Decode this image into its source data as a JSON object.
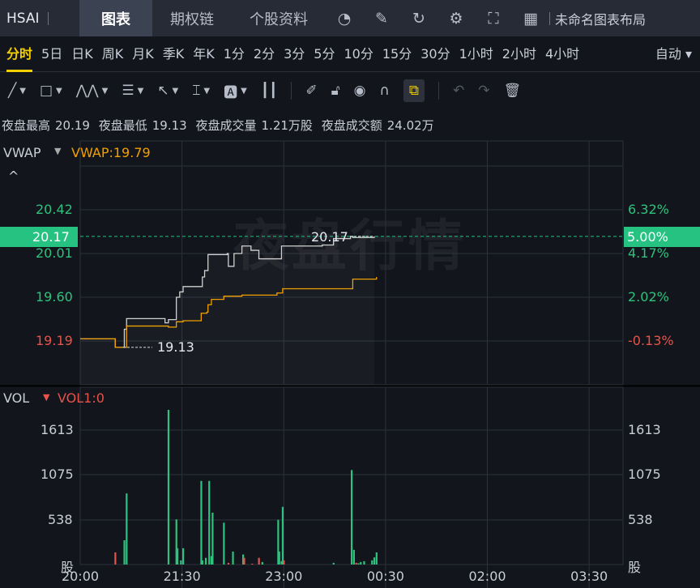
{
  "header": {
    "symbol": "HSAI",
    "tabs": [
      {
        "label": "图表",
        "active": true
      },
      {
        "label": "期权链"
      },
      {
        "label": "个股资料"
      }
    ],
    "icons": [
      "gauge-icon",
      "edit-icon",
      "refresh-icon",
      "gear-icon",
      "fullscreen-icon",
      "grid-icon"
    ],
    "layout_name": "未命名图表布局"
  },
  "periods": {
    "items": [
      "分时",
      "5日",
      "日K",
      "周K",
      "月K",
      "季K",
      "年K",
      "1分",
      "2分",
      "3分",
      "5分",
      "10分",
      "15分",
      "30分",
      "1小时",
      "2小时",
      "4小时"
    ],
    "active": "分时",
    "mode": "自动 ▾"
  },
  "tools": [
    "trendline-icon",
    "rectangle-icon",
    "pattern-icon",
    "fib-icon",
    "arrow-icon",
    "measure-icon",
    "text-icon",
    "candle-icon",
    "pencil-icon",
    "unlock-icon",
    "eye-icon",
    "magnet-icon",
    "link-icon",
    "undo-icon",
    "redo-icon",
    "trash-icon"
  ],
  "info": {
    "high_label": "夜盘最高",
    "high": "20.19",
    "low_label": "夜盘最低",
    "low": "19.13",
    "vol_label": "夜盘成交量",
    "vol": "1.21万股",
    "amt_label": "夜盘成交额",
    "amt": "24.02万"
  },
  "price_pane": {
    "indicator": "VWAP",
    "indicator_value": "VWAP:19.79",
    "watermark": "夜盘行情",
    "left_ticks": [
      "20.42",
      "20.01",
      "19.60",
      "19.19"
    ],
    "right_ticks": [
      "6.32%",
      "4.17%",
      "2.02%",
      "-0.13%"
    ],
    "current_price": "20.17",
    "current_pct": "5.00%",
    "high_mark": "20.17",
    "low_mark": "19.13"
  },
  "volume_pane": {
    "indicator": "VOL",
    "indicator_value": "VOL1:0",
    "ticks": [
      "1613",
      "1075",
      "538"
    ],
    "unit": "股"
  },
  "colors": {
    "up": "#2ec27e",
    "down": "#e5534b",
    "price": "#d0d0d0",
    "vwap": "#f0a000",
    "accent": "#f5d000"
  },
  "chart_data": {
    "type": "line",
    "x_ticks": [
      "20:00",
      "21:30",
      "23:00",
      "00:30",
      "02:00",
      "03:30"
    ],
    "x_range": [
      "20:00",
      "04:00"
    ],
    "y_range": [
      19.1,
      20.5
    ],
    "series": [
      {
        "name": "price",
        "points": [
          [
            "20:00",
            19.21
          ],
          [
            "20:30",
            19.21
          ],
          [
            "20:31",
            19.13
          ],
          [
            "20:38",
            19.13
          ],
          [
            "20:39",
            19.3
          ],
          [
            "20:41",
            19.4
          ],
          [
            "21:14",
            19.4
          ],
          [
            "21:15",
            19.36
          ],
          [
            "21:17",
            19.36
          ],
          [
            "21:18",
            19.39
          ],
          [
            "21:24",
            19.39
          ],
          [
            "21:25",
            19.6
          ],
          [
            "21:28",
            19.65
          ],
          [
            "21:31",
            19.7
          ],
          [
            "21:46",
            19.7
          ],
          [
            "21:48",
            19.79
          ],
          [
            "21:50",
            19.85
          ],
          [
            "21:53",
            20.0
          ],
          [
            "22:10",
            20.01
          ],
          [
            "22:11",
            19.89
          ],
          [
            "22:14",
            19.89
          ],
          [
            "22:16",
            20.01
          ],
          [
            "22:23",
            20.08
          ],
          [
            "22:31",
            20.04
          ],
          [
            "22:38",
            19.96
          ],
          [
            "22:53",
            19.96
          ],
          [
            "22:58",
            20.08
          ],
          [
            "23:34",
            20.09
          ],
          [
            "23:44",
            20.15
          ],
          [
            "23:59",
            20.17
          ],
          [
            "00:01",
            20.16
          ],
          [
            "00:20",
            20.17
          ]
        ]
      },
      {
        "name": "VWAP",
        "points": [
          [
            "20:00",
            19.21
          ],
          [
            "20:30",
            19.21
          ],
          [
            "20:31",
            19.13
          ],
          [
            "20:38",
            19.13
          ],
          [
            "20:41",
            19.33
          ],
          [
            "21:17",
            19.33
          ],
          [
            "21:18",
            19.32
          ],
          [
            "21:24",
            19.32
          ],
          [
            "21:25",
            19.37
          ],
          [
            "21:31",
            19.38
          ],
          [
            "21:45",
            19.38
          ],
          [
            "21:47",
            19.45
          ],
          [
            "21:52",
            19.46
          ],
          [
            "21:53",
            19.53
          ],
          [
            "21:56",
            19.58
          ],
          [
            "22:05",
            19.58
          ],
          [
            "22:07",
            19.61
          ],
          [
            "22:23",
            19.62
          ],
          [
            "22:54",
            19.64
          ],
          [
            "22:59",
            19.68
          ],
          [
            "23:59",
            19.68
          ],
          [
            "00:01",
            19.77
          ],
          [
            "00:22",
            19.79
          ]
        ]
      }
    ],
    "volume": {
      "ylim": [
        0,
        1900
      ],
      "bars": [
        [
          "20:31",
          145,
          "down"
        ],
        [
          "20:39",
          290,
          "up"
        ],
        [
          "20:41",
          850,
          "up"
        ],
        [
          "21:18",
          1850,
          "up"
        ],
        [
          "21:25",
          540,
          "up"
        ],
        [
          "21:26",
          195,
          "up"
        ],
        [
          "21:29",
          50,
          "up"
        ],
        [
          "21:31",
          195,
          "up"
        ],
        [
          "21:47",
          1000,
          "up"
        ],
        [
          "21:48",
          50,
          "up"
        ],
        [
          "21:51",
          80,
          "up"
        ],
        [
          "21:54",
          1000,
          "up"
        ],
        [
          "21:56",
          100,
          "up"
        ],
        [
          "21:57",
          620,
          "up"
        ],
        [
          "22:07",
          500,
          "up"
        ],
        [
          "22:11",
          20,
          "down"
        ],
        [
          "22:15",
          155,
          "up"
        ],
        [
          "22:24",
          120,
          "up"
        ],
        [
          "22:25",
          80,
          "down"
        ],
        [
          "22:32",
          10,
          "down"
        ],
        [
          "22:38",
          80,
          "down"
        ],
        [
          "22:41",
          30,
          "up"
        ],
        [
          "22:55",
          535,
          "up"
        ],
        [
          "22:56",
          155,
          "up"
        ],
        [
          "22:58",
          40,
          "up"
        ],
        [
          "22:59",
          690,
          "up"
        ],
        [
          "23:00",
          50,
          "down"
        ],
        [
          "23:44",
          20,
          "up"
        ],
        [
          "00:00",
          1130,
          "up"
        ],
        [
          "00:02",
          175,
          "up"
        ],
        [
          "00:04",
          20,
          "down"
        ],
        [
          "00:06",
          15,
          "up"
        ],
        [
          "00:08",
          30,
          "up"
        ],
        [
          "00:11",
          40,
          "up"
        ],
        [
          "00:18",
          50,
          "up"
        ],
        [
          "00:20",
          85,
          "up"
        ],
        [
          "00:22",
          145,
          "up"
        ]
      ]
    }
  }
}
